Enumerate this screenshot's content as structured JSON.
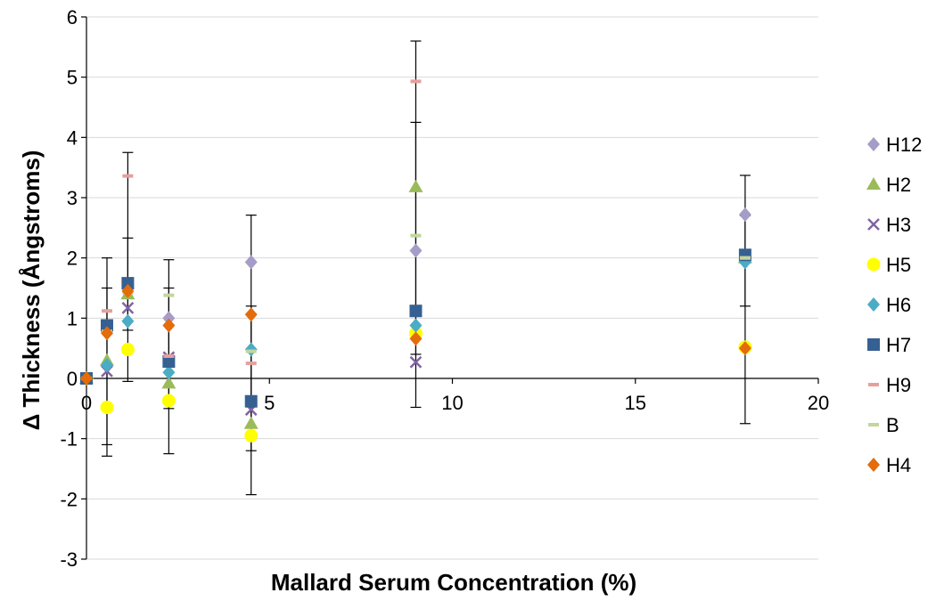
{
  "chart_data": {
    "type": "scatter",
    "xlabel": "Mallard Serum Concentration (%)",
    "ylabel": "Δ Thickness (Ångstroms)",
    "xlim": [
      0,
      20
    ],
    "ylim": [
      -3,
      6
    ],
    "xticks": [
      0,
      5,
      10,
      15,
      20
    ],
    "yticks": [
      -3,
      -2,
      -1,
      0,
      1,
      2,
      3,
      4,
      5,
      6
    ],
    "grid": "horizontal",
    "legend_position": "right",
    "series": [
      {
        "name": "H12",
        "color": "#a59cc8",
        "marker": "diamond",
        "points": [
          [
            0,
            0
          ],
          [
            0.56,
            0.2
          ],
          [
            1.13,
            1.5
          ],
          [
            2.25,
            1.0
          ],
          [
            4.5,
            1.93
          ],
          [
            9,
            2.12
          ],
          [
            18,
            2.72
          ]
        ]
      },
      {
        "name": "H2",
        "color": "#9bbb59",
        "marker": "triangle",
        "points": [
          [
            0,
            0
          ],
          [
            0.56,
            0.3
          ],
          [
            1.13,
            1.4
          ],
          [
            2.25,
            -0.08
          ],
          [
            4.5,
            -0.75
          ],
          [
            9,
            3.18
          ],
          [
            18,
            2.0
          ]
        ]
      },
      {
        "name": "H3",
        "color": "#8064a2",
        "marker": "x",
        "points": [
          [
            0,
            0
          ],
          [
            0.56,
            0.12
          ],
          [
            1.13,
            1.17
          ],
          [
            2.25,
            0.35
          ],
          [
            4.5,
            -0.52
          ],
          [
            9,
            0.27
          ],
          [
            18,
            2.0
          ]
        ]
      },
      {
        "name": "H5",
        "color": "#ffff00",
        "marker": "circle",
        "points": [
          [
            0,
            0
          ],
          [
            0.56,
            -0.48
          ],
          [
            1.13,
            0.48
          ],
          [
            2.25,
            -0.37
          ],
          [
            4.5,
            -0.95
          ],
          [
            9,
            0.75
          ],
          [
            18,
            0.52
          ]
        ]
      },
      {
        "name": "H6",
        "color": "#4bacc6",
        "marker": "diamond",
        "points": [
          [
            0,
            0
          ],
          [
            0.56,
            0.22
          ],
          [
            1.13,
            0.95
          ],
          [
            2.25,
            0.1
          ],
          [
            4.5,
            0.48
          ],
          [
            9,
            0.88
          ],
          [
            18,
            1.93
          ]
        ]
      },
      {
        "name": "H7",
        "color": "#366092",
        "marker": "square",
        "points": [
          [
            0,
            0
          ],
          [
            0.56,
            0.88
          ],
          [
            1.13,
            1.58
          ],
          [
            2.25,
            0.28
          ],
          [
            4.5,
            -0.38
          ],
          [
            9,
            1.12
          ],
          [
            18,
            2.05
          ]
        ]
      },
      {
        "name": "H9",
        "color": "#e6a09c",
        "marker": "dash",
        "points": [
          [
            0,
            0
          ],
          [
            0.56,
            1.12
          ],
          [
            1.13,
            3.36
          ],
          [
            2.25,
            0.37
          ],
          [
            4.5,
            0.25
          ],
          [
            9,
            4.93
          ],
          [
            18,
            2.0
          ]
        ]
      },
      {
        "name": "B",
        "color": "#c3d69b",
        "marker": "dash",
        "points": [
          [
            0,
            0
          ],
          [
            0.56,
            0.78
          ],
          [
            1.13,
            1.42
          ],
          [
            2.25,
            1.38
          ],
          [
            4.5,
            0.45
          ],
          [
            9,
            2.37
          ],
          [
            18,
            2.0
          ]
        ]
      },
      {
        "name": "H4",
        "color": "#e46c0a",
        "marker": "diamond",
        "points": [
          [
            0,
            0
          ],
          [
            0.56,
            0.75
          ],
          [
            1.13,
            1.45
          ],
          [
            2.25,
            0.88
          ],
          [
            4.5,
            1.06
          ],
          [
            9,
            0.66
          ],
          [
            18,
            0.5
          ]
        ]
      }
    ],
    "error_bars": [
      [
        0.56,
        -1.29,
        2.0
      ],
      [
        0.56,
        -1.1,
        1.5
      ],
      [
        1.13,
        -0.05,
        3.75
      ],
      [
        1.13,
        0.8,
        2.33
      ],
      [
        2.25,
        -1.25,
        1.97
      ],
      [
        2.25,
        -0.5,
        1.5
      ],
      [
        4.5,
        -1.93,
        2.71
      ],
      [
        4.5,
        -1.2,
        1.2
      ],
      [
        9,
        -0.48,
        5.6
      ],
      [
        9,
        0.4,
        4.25
      ],
      [
        18,
        -0.75,
        3.37
      ],
      [
        18,
        1.2,
        2.7
      ]
    ]
  }
}
